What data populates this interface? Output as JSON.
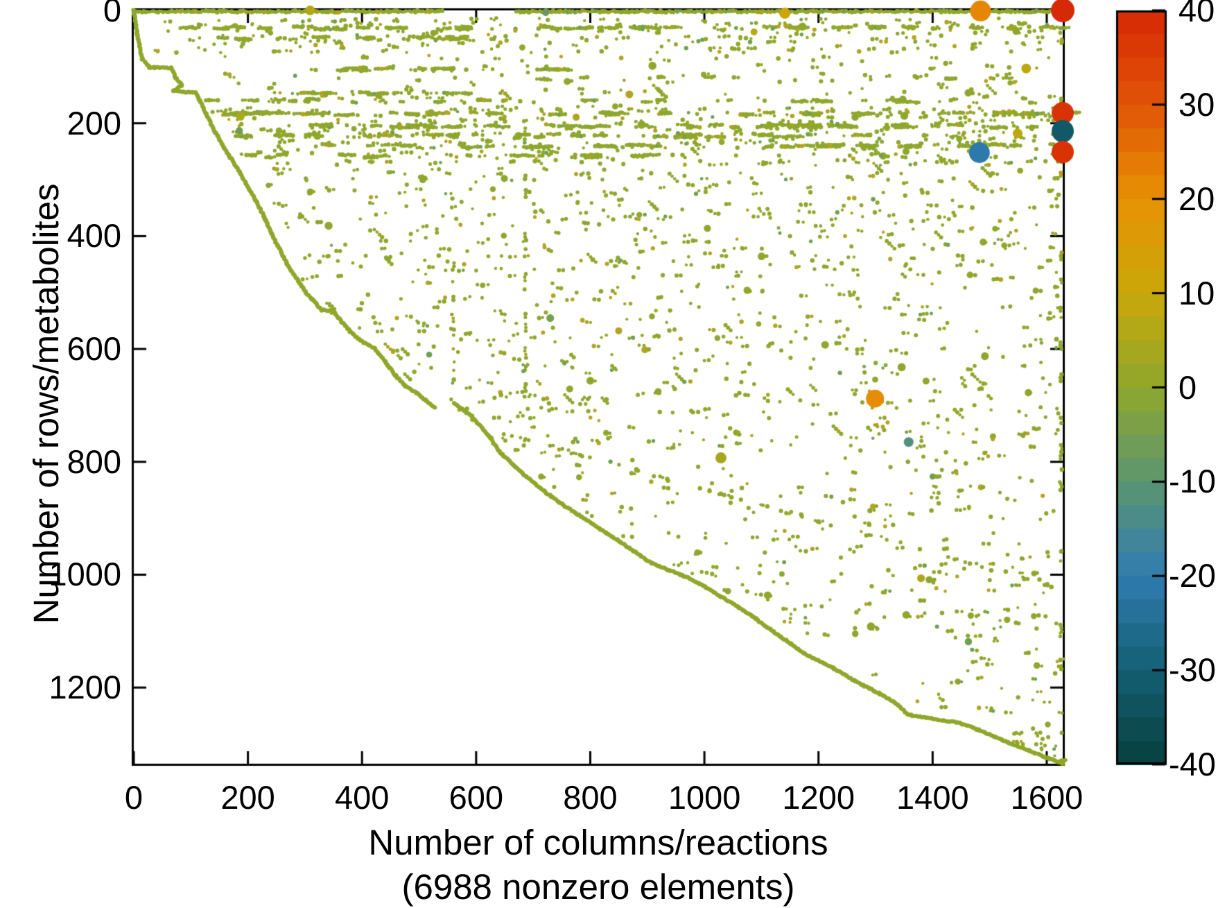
{
  "figure": {
    "background": "#ffffff",
    "text_color": "#000000",
    "ylabel": "Number of rows/metabolites",
    "xlabel_line1": "Number of columns/reactions",
    "xlabel_line2": "(6988 nonzero elements)"
  },
  "chart_data": {
    "type": "scatter",
    "subtype": "matrix-sparsity-spy-plot",
    "title": "",
    "xlabel": "Number of columns/reactions (6988 nonzero elements)",
    "ylabel": "Number of rows/metabolites",
    "nonzero_elements": 6988,
    "xlim": [
      0,
      1628
    ],
    "ylim": [
      0,
      1335
    ],
    "y_inverted": true,
    "grid": false,
    "box": true,
    "tick_direction": "in",
    "x_ticks": [
      0,
      200,
      400,
      600,
      800,
      1000,
      1200,
      1400,
      1600
    ],
    "y_ticks": [
      0,
      200,
      400,
      600,
      800,
      1000,
      1200
    ],
    "marker_base_color": "#8fa72b",
    "marker_alt_colors": [
      "#b1a41e",
      "#6fa04e"
    ],
    "axis_color": "#000000",
    "colorbar": {
      "min": -40,
      "max": 40,
      "ticks": [
        40,
        30,
        20,
        10,
        0,
        -10,
        -20,
        -30,
        -40
      ],
      "bands": 32,
      "position": "right",
      "stop_values": [
        40,
        30,
        20,
        10,
        0,
        -10,
        -20,
        -30,
        -40
      ],
      "stop_colors": [
        "#d62905",
        "#e15407",
        "#e79204",
        "#c9a80a",
        "#8fa72b",
        "#5b9570",
        "#2f7cb1",
        "#135f73",
        "#07403d"
      ]
    },
    "notable_points": [
      {
        "col": 1484,
        "row": 1,
        "value": 22,
        "r": 15
      },
      {
        "col": 1628,
        "row": 0,
        "value": 40,
        "r": 17
      },
      {
        "col": 1628,
        "row": 182,
        "value": 38,
        "r": 16
      },
      {
        "col": 1628,
        "row": 214,
        "value": -32,
        "r": 16
      },
      {
        "col": 1628,
        "row": 251,
        "value": 38,
        "r": 16
      },
      {
        "col": 1482,
        "row": 252,
        "value": -21,
        "r": 15
      },
      {
        "col": 1299,
        "row": 688,
        "value": 21,
        "r": 13
      },
      {
        "col": 1358,
        "row": 765,
        "value": -12,
        "r": 7
      },
      {
        "col": 1564,
        "row": 103,
        "value": 8,
        "r": 7
      },
      {
        "col": 1549,
        "row": 218,
        "value": 8,
        "r": 7
      },
      {
        "col": 1029,
        "row": 793,
        "value": 4,
        "r": 8
      },
      {
        "col": 309,
        "row": 0,
        "value": 6,
        "r": 7
      },
      {
        "col": 187,
        "row": 188,
        "value": 5,
        "r": 6
      },
      {
        "col": 185,
        "row": 213,
        "value": -6,
        "r": 5
      },
      {
        "col": 1141,
        "row": 5,
        "value": 12,
        "r": 8
      },
      {
        "col": 722,
        "row": 4,
        "value": -8,
        "r": 5
      },
      {
        "col": 1087,
        "row": 38,
        "value": 7,
        "r": 5
      }
    ],
    "diagonal_waypoints": [
      [
        0,
        0
      ],
      [
        6,
        43
      ],
      [
        15,
        86
      ],
      [
        27,
        101
      ],
      [
        66,
        102
      ],
      [
        72,
        117
      ],
      [
        84,
        133
      ],
      [
        69,
        143
      ],
      [
        109,
        146
      ],
      [
        126,
        182
      ],
      [
        143,
        216
      ],
      [
        158,
        243
      ],
      [
        180,
        278
      ],
      [
        197,
        307
      ],
      [
        214,
        337
      ],
      [
        230,
        369
      ],
      [
        244,
        401
      ],
      [
        259,
        430
      ],
      [
        269,
        450
      ],
      [
        287,
        478
      ],
      [
        301,
        499
      ],
      [
        315,
        515
      ],
      [
        329,
        531
      ],
      [
        349,
        532
      ],
      [
        363,
        550
      ],
      [
        379,
        569
      ],
      [
        399,
        586
      ],
      [
        422,
        599
      ],
      [
        441,
        623
      ],
      [
        459,
        647
      ],
      [
        476,
        666
      ],
      [
        497,
        679
      ],
      [
        513,
        692
      ],
      [
        527,
        704
      ],
      null,
      [
        561,
        696
      ],
      [
        592,
        719
      ],
      [
        622,
        754
      ],
      [
        641,
        782
      ],
      [
        665,
        805
      ],
      [
        689,
        827
      ],
      [
        719,
        852
      ],
      [
        750,
        875
      ],
      [
        784,
        897
      ],
      [
        816,
        918
      ],
      [
        847,
        938
      ],
      [
        877,
        959
      ],
      [
        908,
        980
      ],
      [
        938,
        992
      ],
      [
        968,
        1004
      ],
      [
        999,
        1020
      ],
      [
        1029,
        1039
      ],
      [
        1059,
        1057
      ],
      [
        1090,
        1078
      ],
      [
        1120,
        1100
      ],
      [
        1151,
        1122
      ],
      [
        1175,
        1140
      ],
      [
        1199,
        1152
      ],
      [
        1223,
        1164
      ],
      [
        1248,
        1179
      ],
      [
        1278,
        1196
      ],
      [
        1308,
        1211
      ],
      [
        1333,
        1226
      ],
      [
        1357,
        1248
      ],
      [
        1387,
        1253
      ],
      [
        1418,
        1258
      ],
      [
        1448,
        1263
      ],
      [
        1478,
        1274
      ],
      [
        1509,
        1287
      ],
      [
        1539,
        1300
      ],
      [
        1570,
        1312
      ],
      [
        1594,
        1322
      ],
      [
        1612,
        1329
      ],
      [
        1628,
        1335
      ]
    ],
    "diagonal_boundary": [
      [
        0,
        0
      ],
      [
        101,
        27
      ],
      [
        146,
        109
      ],
      [
        182,
        126
      ],
      [
        243,
        158
      ],
      [
        307,
        197
      ],
      [
        401,
        244
      ],
      [
        478,
        287
      ],
      [
        531,
        329
      ],
      [
        599,
        422
      ],
      [
        666,
        476
      ],
      [
        704,
        527
      ],
      [
        712,
        561
      ],
      [
        782,
        641
      ],
      [
        852,
        719
      ],
      [
        897,
        784
      ],
      [
        959,
        877
      ],
      [
        1004,
        968
      ],
      [
        1057,
        1059
      ],
      [
        1122,
        1151
      ],
      [
        1164,
        1223
      ],
      [
        1211,
        1308
      ],
      [
        1258,
        1418
      ],
      [
        1287,
        1509
      ],
      [
        1335,
        1628
      ]
    ],
    "pattern": {
      "seed": 1337,
      "top_row": {
        "row": 2,
        "segments": [
          [
            0,
            543
          ],
          [
            670,
            1628
          ]
        ],
        "step": 3.4
      },
      "bands": [
        {
          "row": 31,
          "cols": [
            60,
            1628
          ],
          "runs": 44,
          "run_len": [
            2,
            7
          ]
        },
        {
          "row": 49,
          "cols": [
            100,
            640
          ],
          "runs": 16,
          "run_len": [
            2,
            6
          ]
        },
        {
          "row": 104,
          "cols": [
            300,
            740
          ],
          "runs": 13,
          "run_len": [
            3,
            8
          ]
        },
        {
          "row": 120,
          "cols": [
            620,
            1628
          ],
          "runs": 9,
          "run_len": [
            2,
            4
          ]
        },
        {
          "row": 146,
          "cols": [
            240,
            600
          ],
          "runs": 10,
          "run_len": [
            3,
            6
          ]
        },
        {
          "row": 160,
          "cols": [
            120,
            1628
          ],
          "runs": 26,
          "run_len": [
            2,
            6
          ]
        },
        {
          "row": 183,
          "cols": [
            120,
            1628
          ],
          "runs": 36,
          "run_len": [
            3,
            8
          ]
        },
        {
          "row": 205,
          "cols": [
            300,
            1628
          ],
          "runs": 36,
          "run_len": [
            3,
            8
          ]
        },
        {
          "row": 222,
          "cols": [
            100,
            1628
          ],
          "runs": 30,
          "run_len": [
            2,
            7
          ]
        },
        {
          "row": 240,
          "cols": [
            320,
            1628
          ],
          "runs": 30,
          "run_len": [
            3,
            8
          ]
        },
        {
          "row": 258,
          "cols": [
            120,
            900
          ],
          "runs": 18,
          "run_len": [
            2,
            6
          ]
        }
      ],
      "vertical_dashes": [
        {
          "col": 686,
          "rows": [
            140,
            700
          ],
          "dashes": 15
        },
        {
          "col": 560,
          "rows": [
            430,
            700
          ],
          "dashes": 8
        },
        {
          "col": 1625,
          "rows": [
            30,
            1320
          ],
          "dashes": 26
        }
      ],
      "shallow_line": {
        "from": [
          620,
          742
        ],
        "to": [
          1628,
          1025
        ],
        "dots": 64
      },
      "scatter_regions": [
        {
          "rows": [
            14,
            75
          ],
          "cols": [
            30,
            1628
          ],
          "n": 250
        },
        {
          "rows": [
            80,
            165
          ],
          "cols": [
            150,
            1628
          ],
          "n": 115
        },
        {
          "rows": [
            170,
            275
          ],
          "cols": [
            100,
            1628
          ],
          "n": 400
        },
        {
          "rows": [
            280,
            470
          ],
          "cols": [
            220,
            1628
          ],
          "n": 370
        },
        {
          "rows": [
            470,
            780
          ],
          "cols": [
            250,
            1628
          ],
          "n": 410
        },
        {
          "rows": [
            780,
            1120
          ],
          "cols": [
            600,
            1628
          ],
          "n": 250
        },
        {
          "rows": [
            1120,
            1330
          ],
          "cols": [
            1000,
            1628
          ],
          "n": 55
        }
      ],
      "diag_dashes": {
        "n": 55,
        "rows": [
          120,
          760
        ],
        "cols": [
          250,
          1500
        ],
        "len": [
          2,
          4
        ]
      }
    }
  }
}
